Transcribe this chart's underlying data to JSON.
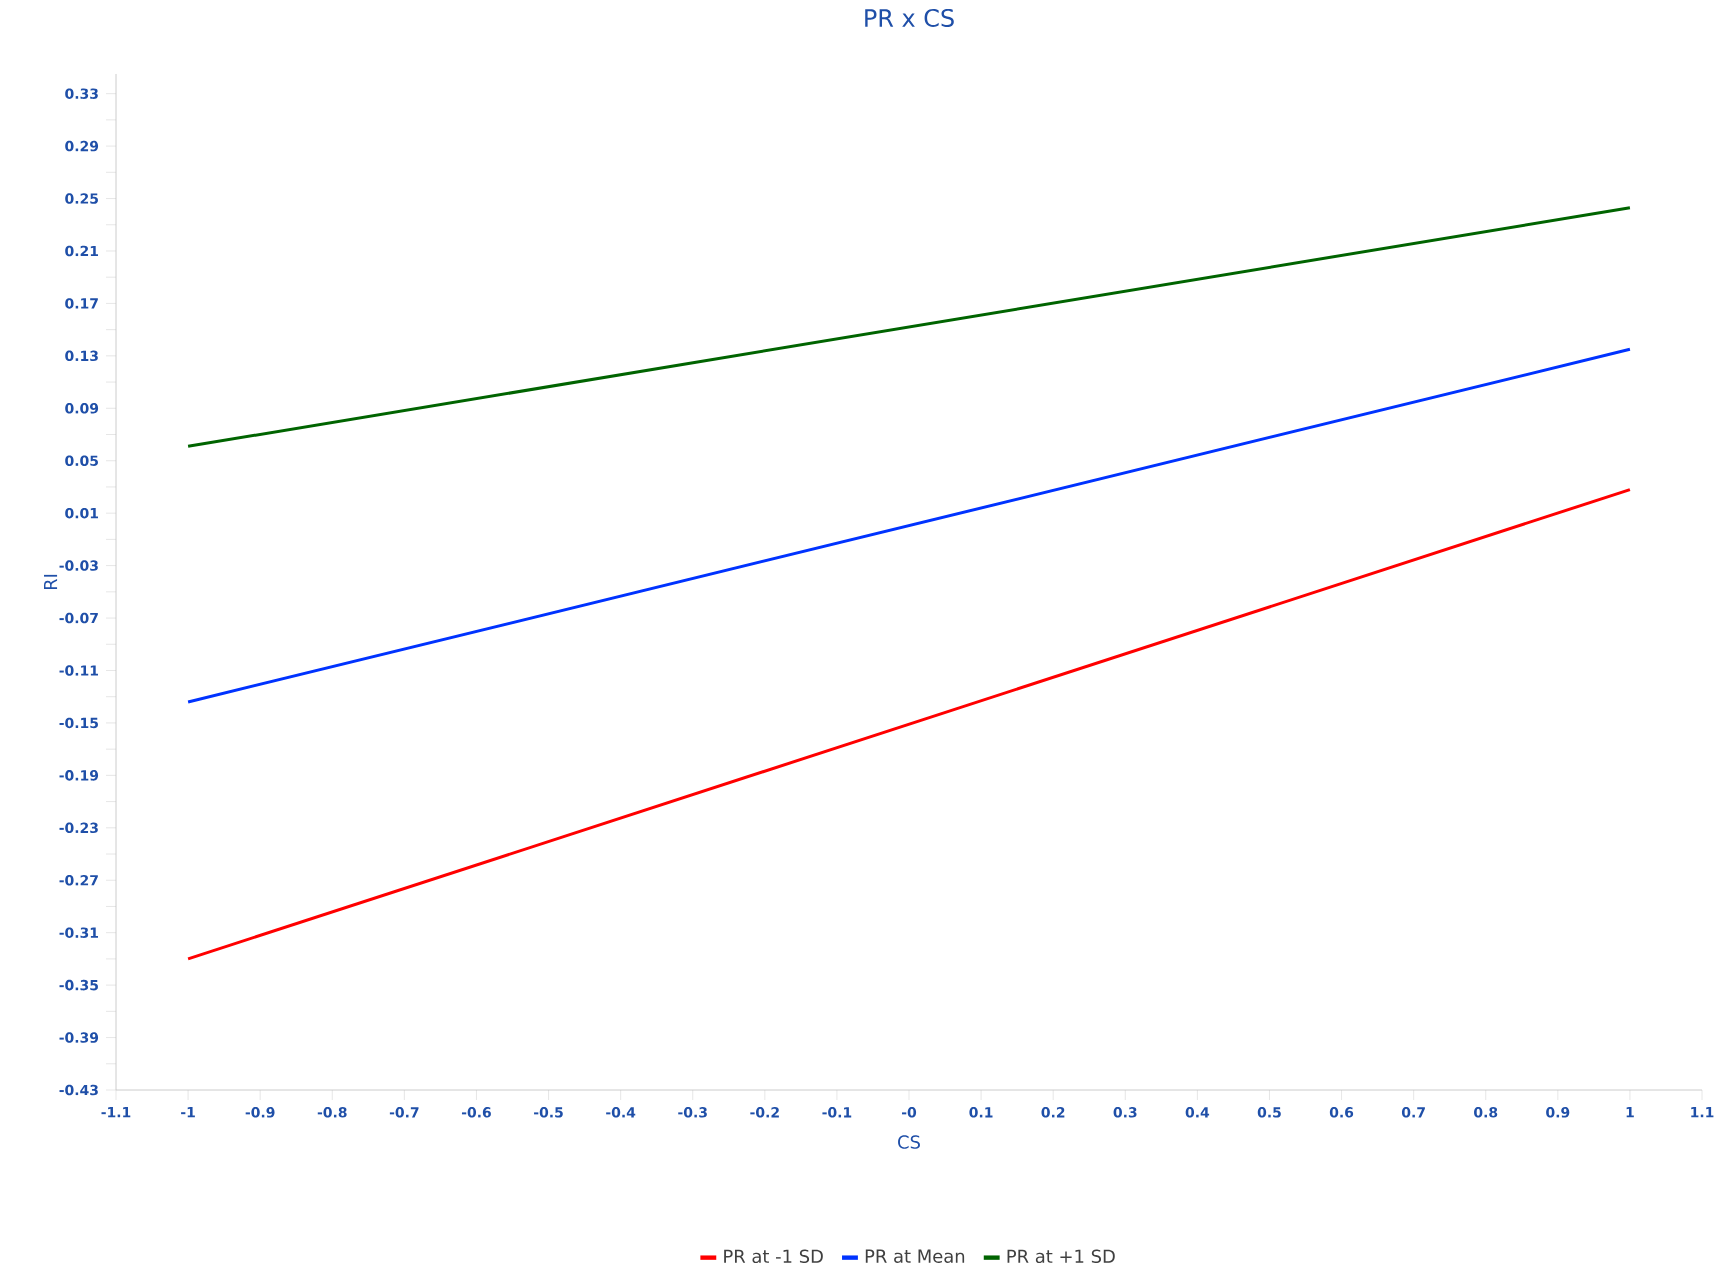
{
  "chart_data": {
    "type": "line",
    "title": "PR x CS",
    "xlabel": "CS",
    "ylabel": "RI",
    "x": [
      -1,
      1
    ],
    "series": [
      {
        "name": "PR at -1 SD",
        "color": "#ff0000",
        "values": [
          -0.33,
          0.028
        ]
      },
      {
        "name": "PR at Mean",
        "color": "#0033ff",
        "values": [
          -0.134,
          0.135
        ]
      },
      {
        "name": "PR at +1 SD",
        "color": "#006400",
        "values": [
          0.061,
          0.243
        ]
      }
    ],
    "xlim": [
      -1.1,
      1.1
    ],
    "ylim": [
      -0.43,
      0.345
    ],
    "xticks": [
      -1.1,
      -1,
      -0.9,
      -0.8,
      -0.7,
      -0.6,
      -0.5,
      -0.4,
      -0.3,
      -0.2,
      -0.1,
      {
        "value": 0,
        "label": "-0"
      },
      0.1,
      0.2,
      0.3,
      0.4,
      0.5,
      0.6,
      0.7,
      0.8,
      0.9,
      1,
      1.1
    ],
    "yticks": [
      -0.43,
      {
        "value": -0.41,
        "label": null
      },
      -0.39,
      {
        "value": -0.37,
        "label": null
      },
      -0.35,
      {
        "value": -0.33,
        "label": null
      },
      -0.31,
      {
        "value": -0.29,
        "label": null
      },
      -0.27,
      {
        "value": -0.25,
        "label": null
      },
      -0.23,
      {
        "value": -0.21,
        "label": null
      },
      -0.19,
      {
        "value": -0.17,
        "label": null
      },
      -0.15,
      {
        "value": -0.13,
        "label": null
      },
      -0.11,
      {
        "value": -0.09,
        "label": null
      },
      -0.07,
      {
        "value": -0.05,
        "label": null
      },
      -0.03,
      {
        "value": -0.01,
        "label": null
      },
      0.01,
      {
        "value": 0.03,
        "label": null
      },
      0.05,
      {
        "value": 0.07,
        "label": null
      },
      0.09,
      {
        "value": 0.11,
        "label": null
      },
      0.13,
      {
        "value": 0.15,
        "label": null
      },
      0.17,
      {
        "value": 0.19,
        "label": null
      },
      0.21,
      {
        "value": 0.23,
        "label": null
      },
      0.25,
      {
        "value": 0.27,
        "label": null
      },
      0.29,
      {
        "value": 0.31,
        "label": null
      },
      0.33
    ],
    "grid": false,
    "legend": "bottom",
    "marker": "none",
    "line_style": "solid"
  }
}
